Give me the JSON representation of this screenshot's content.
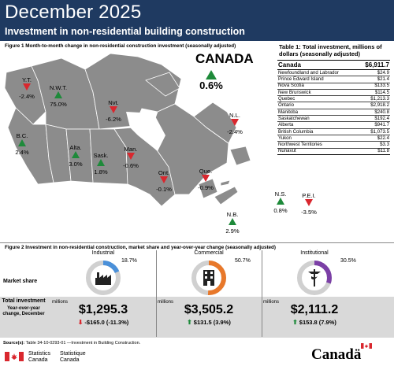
{
  "header": {
    "title": "December 2025",
    "subtitle": "Investment in non-residential building construction"
  },
  "figure1": {
    "caption": "Figure 1  Month-to-month change in non-residential construction investment (seasonally adjusted)",
    "canada": {
      "name": "CANADA",
      "value": "0.6%",
      "direction": "up"
    },
    "regions": [
      {
        "name": "Y.T.",
        "value": "-2.4%",
        "direction": "down"
      },
      {
        "name": "N.W.T.",
        "value": "75.0%",
        "direction": "up"
      },
      {
        "name": "Nvt.",
        "value": "-6.2%",
        "direction": "down"
      },
      {
        "name": "N.L.",
        "value": "-2.4%",
        "direction": "down"
      },
      {
        "name": "B.C.",
        "value": "2.4%",
        "direction": "up"
      },
      {
        "name": "Alta.",
        "value": "3.0%",
        "direction": "up"
      },
      {
        "name": "Sask.",
        "value": "1.8%",
        "direction": "up"
      },
      {
        "name": "Man.",
        "value": "-0.6%",
        "direction": "down"
      },
      {
        "name": "Ont.",
        "value": "-0.1%",
        "direction": "down"
      },
      {
        "name": "Que.",
        "value": "-0.9%",
        "direction": "down"
      },
      {
        "name": "P.E.I.",
        "value": "-3.5%",
        "direction": "down"
      },
      {
        "name": "N.S.",
        "value": "0.8%",
        "direction": "up"
      },
      {
        "name": "N.B.",
        "value": "2.9%",
        "direction": "up"
      }
    ]
  },
  "table1": {
    "title": "Table 1: Total investment, millions of dollars (seasonally adjusted)",
    "total_label": "Canada",
    "total_value": "$6,911.7",
    "rows": [
      {
        "label": "Newfoundland and Labrador",
        "value": "$24.9"
      },
      {
        "label": "Prince Edward Island",
        "value": "$21.4"
      },
      {
        "label": "Nova Scotia",
        "value": "$133.5"
      },
      {
        "label": "New Brunswick",
        "value": "$114.5"
      },
      {
        "label": "Quebec",
        "value": "$1,213.3"
      },
      {
        "label": "Ontario",
        "value": "$2,918.2"
      },
      {
        "label": "Manitoba",
        "value": "$240.8"
      },
      {
        "label": "Saskatchewan",
        "value": "$192.4"
      },
      {
        "label": "Alberta",
        "value": "$941.7"
      },
      {
        "label": "British Columbia",
        "value": "$1,073.5"
      },
      {
        "label": "Yukon",
        "value": "$22.4"
      },
      {
        "label": "Northwest Territories",
        "value": "$3.3"
      },
      {
        "label": "Nunavut",
        "value": "$11.8"
      }
    ]
  },
  "figure2": {
    "caption": "Figure 2 Investment in non-residential construction, market share and year-over-year change (seasonally adjusted)",
    "market_share_label": "Market share",
    "total_label": "Total investment",
    "yoy_label": "Year-over-year change, December",
    "millions_label": "millions",
    "sectors": [
      {
        "name": "Industrial",
        "share": "18.7%",
        "share_fraction": 0.187,
        "color": "#4a90d9",
        "investment": "$1,295.3",
        "yoy": "-$165.0 (-11.3%)",
        "direction": "down"
      },
      {
        "name": "Commercial",
        "share": "50.7%",
        "share_fraction": 0.507,
        "color": "#e8782a",
        "investment": "$3,505.2",
        "yoy": "$131.5 (3.9%)",
        "direction": "up"
      },
      {
        "name": "Institutional",
        "share": "30.5%",
        "share_fraction": 0.305,
        "color": "#7b3fa6",
        "investment": "$2,111.2",
        "yoy": "$153.8 (7.9%)",
        "direction": "up"
      }
    ]
  },
  "footer": {
    "source_label": "Source(s):",
    "source_text": "Table 34-10-0293-01 —Investment in Building Construction.",
    "sc_en_1": "Statistics",
    "sc_en_2": "Canada",
    "sc_fr_1": "Statistique",
    "sc_fr_2": "Canada",
    "wordmark": "Canadä"
  },
  "colors": {
    "header_bg": "#1f3a61",
    "up": "#1e8a3a",
    "down": "#d9272e",
    "map_fill": "#8c8c8c"
  }
}
